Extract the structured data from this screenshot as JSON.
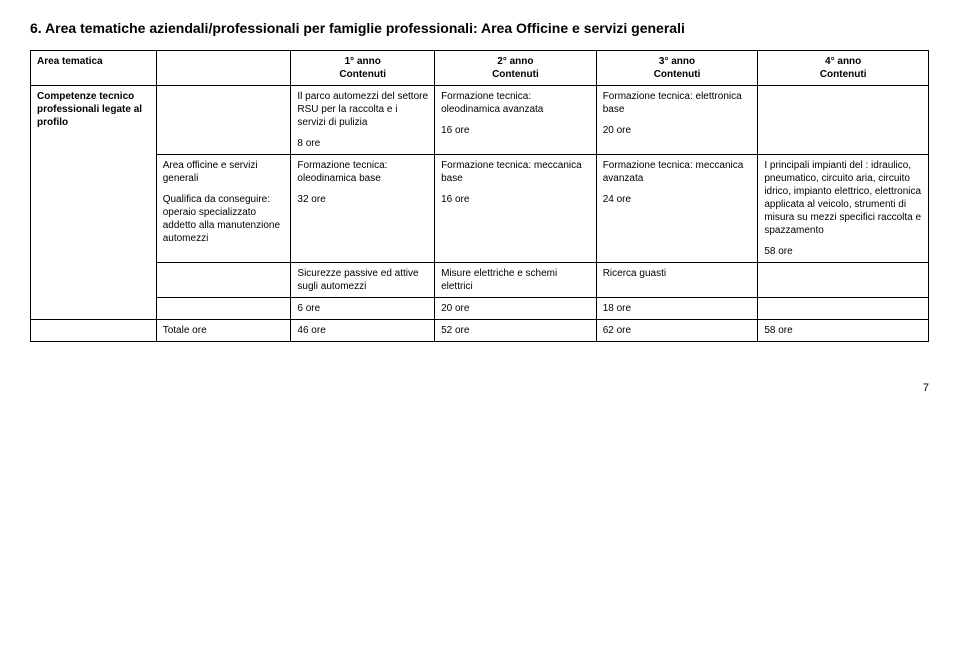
{
  "title": "6. Area tematiche aziendali/professionali per famiglie professionali: Area Officine e servizi generali",
  "cols": {
    "c0": "Area tematica",
    "c2_top": "1° anno",
    "c2_sub": "Contenuti",
    "c3_top": "2° anno",
    "c3_sub": "Contenuti",
    "c4_top": "3° anno",
    "c4_sub": "Contenuti",
    "c5_top": "4° anno",
    "c5_sub": "Contenuti"
  },
  "r1": {
    "left": "Competenze tecnico professionali legate al profilo",
    "c2a": "Il parco automezzi del settore RSU  per la raccolta e i servizi di pulizia",
    "c2b": "8 ore",
    "c3a": "Formazione tecnica: oleodinamica avanzata",
    "c3b": "16 ore",
    "c4a": "Formazione tecnica: elettronica base",
    "c4b": "20 ore"
  },
  "r2": {
    "b1a": "Area officine e servizi generali",
    "b1b": "Qualifica da conseguire: operaio specializzato addetto alla manutenzione automezzi",
    "c2a": "Formazione tecnica: oleodinamica base",
    "c2b": "32 ore",
    "c3a": "Formazione tecnica:  meccanica base",
    "c3b": "16 ore",
    "c4a": "Formazione tecnica:  meccanica avanzata",
    "c4b": "24 ore",
    "c5a": "I principali impianti del : idraulico, pneumatico, circuito aria, circuito idrico, impianto elettrico, elettronica applicata al veicolo, strumenti di misura su mezzi specifici raccolta e spazzamento",
    "c5b": "58 ore"
  },
  "r3": {
    "c2": "Sicurezze passive ed attive sugli automezzi",
    "c3": "Misure elettriche e schemi elettrici",
    "c4": "Ricerca guasti"
  },
  "r4": {
    "c2": "6 ore",
    "c3": "20 ore",
    "c4": "18 ore"
  },
  "r5": {
    "b1": "Totale ore",
    "c2": "46 ore",
    "c3": "52 ore",
    "c4": "62 ore",
    "c5": "58 ore"
  },
  "pagenum": "7"
}
